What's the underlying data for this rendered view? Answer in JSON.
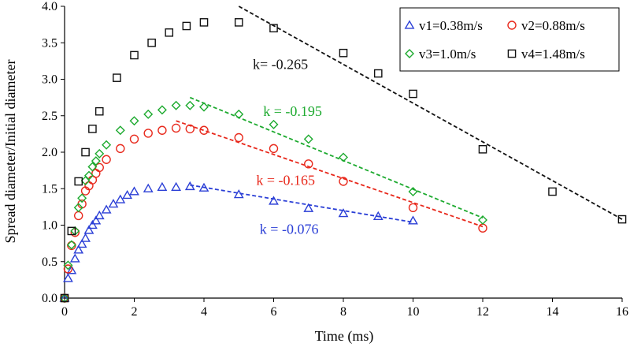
{
  "chart_data": {
    "type": "scatter",
    "title": "",
    "xlabel": "Time (ms)",
    "ylabel": "Spread diameter/Initial diameter",
    "xlim": [
      0,
      16
    ],
    "ylim": [
      0,
      4.0
    ],
    "xticks": [
      0,
      2,
      4,
      6,
      8,
      10,
      12,
      14,
      16
    ],
    "yticks": [
      0.0,
      0.5,
      1.0,
      1.5,
      2.0,
      2.5,
      3.0,
      3.5,
      4.0
    ],
    "xtick_labels": [
      "0",
      "2",
      "4",
      "6",
      "8",
      "10",
      "12",
      "14",
      "16"
    ],
    "ytick_labels": [
      "0.0",
      "0.5",
      "1.0",
      "1.5",
      "2.0",
      "2.5",
      "3.0",
      "3.5",
      "4.0"
    ],
    "grid": false,
    "legend_position": "top-right",
    "series": [
      {
        "name": "v1=0.38m/s",
        "marker": "triangle",
        "color": "#2b3fd6",
        "x": [
          0,
          0.1,
          0.2,
          0.3,
          0.4,
          0.5,
          0.6,
          0.7,
          0.8,
          0.9,
          1.0,
          1.2,
          1.4,
          1.6,
          1.8,
          2.0,
          2.4,
          2.8,
          3.2,
          3.6,
          4.0,
          5.0,
          6.0,
          7.0,
          8.0,
          9.0,
          10.0
        ],
        "y": [
          0.0,
          0.27,
          0.38,
          0.54,
          0.66,
          0.74,
          0.82,
          0.93,
          1.0,
          1.06,
          1.13,
          1.21,
          1.29,
          1.35,
          1.41,
          1.46,
          1.5,
          1.52,
          1.52,
          1.53,
          1.51,
          1.42,
          1.33,
          1.23,
          1.16,
          1.12,
          1.06
        ]
      },
      {
        "name": "v2=0.88m/s",
        "marker": "circle",
        "color": "#e8291c",
        "x": [
          0,
          0.1,
          0.2,
          0.3,
          0.4,
          0.5,
          0.6,
          0.7,
          0.8,
          0.9,
          1.0,
          1.2,
          1.6,
          2.0,
          2.4,
          2.8,
          3.2,
          3.6,
          4.0,
          5.0,
          6.0,
          7.0,
          8.0,
          10.0,
          12.0
        ],
        "y": [
          0.0,
          0.4,
          0.72,
          0.9,
          1.13,
          1.29,
          1.47,
          1.54,
          1.62,
          1.71,
          1.79,
          1.9,
          2.05,
          2.18,
          2.26,
          2.3,
          2.33,
          2.32,
          2.3,
          2.2,
          2.05,
          1.84,
          1.6,
          1.24,
          0.96
        ]
      },
      {
        "name": "v3=1.0m/s",
        "marker": "diamond",
        "color": "#1daa2f",
        "x": [
          0,
          0.1,
          0.2,
          0.3,
          0.4,
          0.5,
          0.6,
          0.7,
          0.8,
          0.9,
          1.0,
          1.2,
          1.6,
          2.0,
          2.4,
          2.8,
          3.2,
          3.6,
          4.0,
          5.0,
          6.0,
          7.0,
          8.0,
          10.0,
          12.0
        ],
        "y": [
          0.0,
          0.45,
          0.73,
          0.92,
          1.24,
          1.37,
          1.61,
          1.68,
          1.8,
          1.88,
          1.98,
          2.1,
          2.3,
          2.43,
          2.52,
          2.58,
          2.64,
          2.64,
          2.62,
          2.52,
          2.38,
          2.18,
          1.93,
          1.46,
          1.07
        ]
      },
      {
        "name": "v4=1.48m/s",
        "marker": "square",
        "color": "#111111",
        "x": [
          0,
          0.2,
          0.4,
          0.6,
          0.8,
          1.0,
          1.5,
          2.0,
          2.5,
          3.0,
          3.5,
          4.0,
          5.0,
          6.0,
          8.0,
          9.0,
          10.0,
          12.0,
          14.0,
          16.0
        ],
        "y": [
          0.0,
          0.92,
          1.6,
          2.0,
          2.32,
          2.56,
          3.02,
          3.33,
          3.5,
          3.64,
          3.73,
          3.78,
          3.78,
          3.7,
          3.36,
          3.08,
          2.8,
          2.04,
          1.46,
          1.08
        ]
      }
    ],
    "fit_lines": [
      {
        "series": "v1=0.38m/s",
        "x": [
          3.6,
          10.0
        ],
        "y": [
          1.55,
          1.04
        ],
        "color": "#2b3fd6"
      },
      {
        "series": "v2=0.88m/s",
        "x": [
          3.2,
          12.0
        ],
        "y": [
          2.43,
          0.98
        ],
        "color": "#e8291c"
      },
      {
        "series": "v3=1.0m/s",
        "x": [
          3.6,
          12.0
        ],
        "y": [
          2.75,
          1.1
        ],
        "color": "#1daa2f"
      },
      {
        "series": "v4=1.48m/s",
        "x": [
          5.0,
          16.0
        ],
        "y": [
          4.0,
          1.08
        ],
        "color": "#111111"
      }
    ],
    "annotations": [
      {
        "text": "k= -0.265",
        "x": 5.4,
        "y": 3.14,
        "color": "#111111"
      },
      {
        "text": "k = -0.195",
        "x": 5.7,
        "y": 2.5,
        "color": "#1daa2f"
      },
      {
        "text": "k = -0.165",
        "x": 5.5,
        "y": 1.55,
        "color": "#e8291c"
      },
      {
        "text": "k = -0.076",
        "x": 5.6,
        "y": 0.88,
        "color": "#2b3fd6"
      }
    ]
  }
}
